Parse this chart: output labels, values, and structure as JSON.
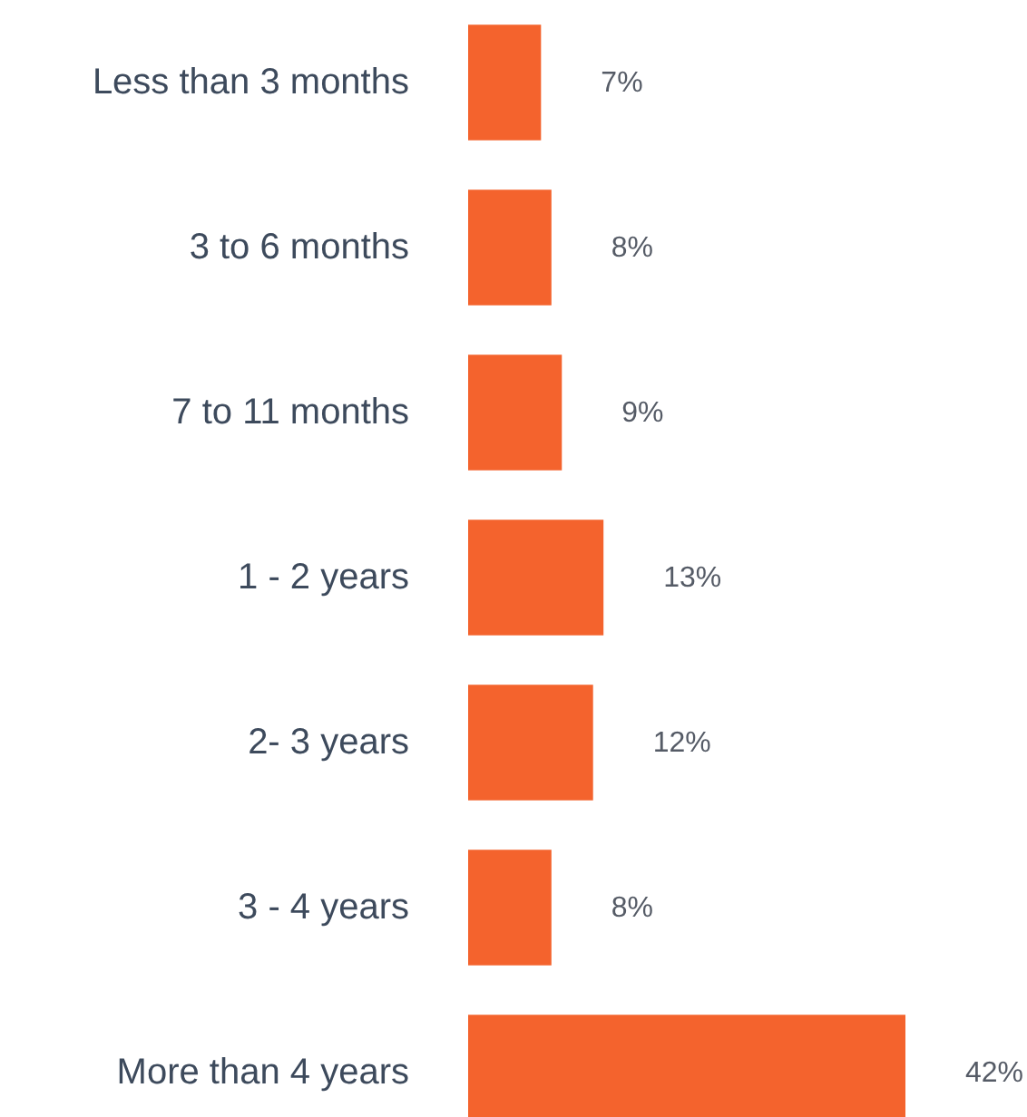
{
  "chart_data": {
    "type": "bar",
    "orientation": "horizontal",
    "categories": [
      "Less than 3 months",
      "3 to 6 months",
      "7 to 11 months",
      "1 - 2 years",
      "2- 3 years",
      "3 - 4 years",
      "More than 4 years"
    ],
    "values": [
      7,
      8,
      9,
      13,
      12,
      8,
      42
    ],
    "value_labels": [
      "7%",
      "8%",
      "9%",
      "13%",
      "12%",
      "8%",
      "42%"
    ],
    "color": "#f4632d"
  }
}
